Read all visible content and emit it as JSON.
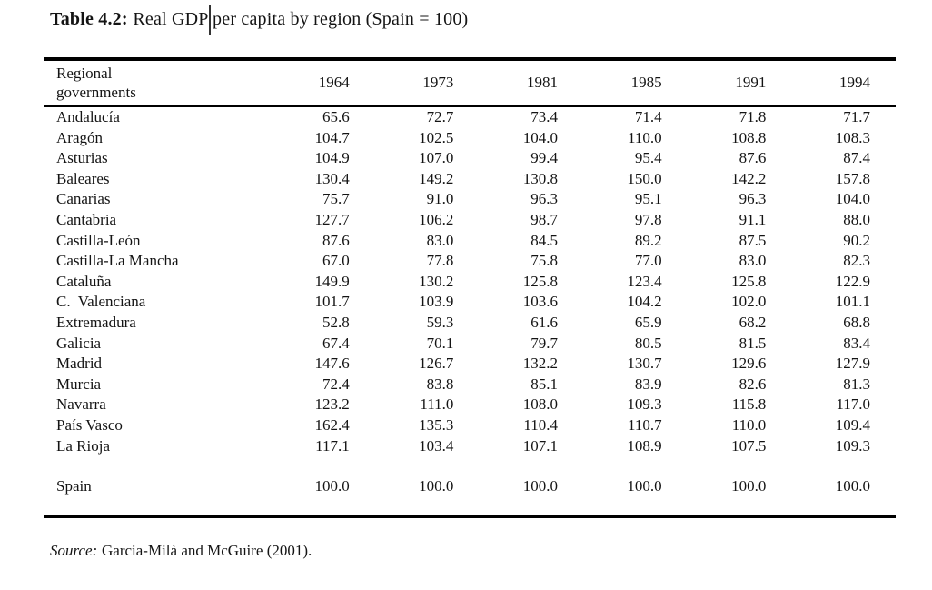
{
  "title": {
    "label": "Table 4.2:",
    "text": "Real GDP per capita by region (Spain = 100)"
  },
  "table": {
    "header": {
      "region_line1": "Regional",
      "region_line2": "governments",
      "years": [
        "1964",
        "1973",
        "1981",
        "1985",
        "1991",
        "1994"
      ]
    },
    "rows": [
      {
        "region": "Andalucía",
        "values": [
          "65.6",
          "72.7",
          "73.4",
          "71.4",
          "71.8",
          "71.7"
        ]
      },
      {
        "region": "Aragón",
        "values": [
          "104.7",
          "102.5",
          "104.0",
          "110.0",
          "108.8",
          "108.3"
        ]
      },
      {
        "region": "Asturias",
        "values": [
          "104.9",
          "107.0",
          "99.4",
          "95.4",
          "87.6",
          "87.4"
        ]
      },
      {
        "region": "Baleares",
        "values": [
          "130.4",
          "149.2",
          "130.8",
          "150.0",
          "142.2",
          "157.8"
        ]
      },
      {
        "region": "Canarias",
        "values": [
          "75.7",
          "91.0",
          "96.3",
          "95.1",
          "96.3",
          "104.0"
        ]
      },
      {
        "region": "Cantabria",
        "values": [
          "127.7",
          "106.2",
          "98.7",
          "97.8",
          "91.1",
          "88.0"
        ]
      },
      {
        "region": "Castilla-León",
        "values": [
          "87.6",
          "83.0",
          "84.5",
          "89.2",
          "87.5",
          "90.2"
        ]
      },
      {
        "region": "Castilla-La Mancha",
        "values": [
          "67.0",
          "77.8",
          "75.8",
          "77.0",
          "83.0",
          "82.3"
        ]
      },
      {
        "region": "Cataluña",
        "values": [
          "149.9",
          "130.2",
          "125.8",
          "123.4",
          "125.8",
          "122.9"
        ]
      },
      {
        "region": "C.  Valenciana",
        "values": [
          "101.7",
          "103.9",
          "103.6",
          "104.2",
          "102.0",
          "101.1"
        ]
      },
      {
        "region": "Extremadura",
        "values": [
          "52.8",
          "59.3",
          "61.6",
          "65.9",
          "68.2",
          "68.8"
        ]
      },
      {
        "region": "Galicia",
        "values": [
          "67.4",
          "70.1",
          "79.7",
          "80.5",
          "81.5",
          "83.4"
        ]
      },
      {
        "region": "Madrid",
        "values": [
          "147.6",
          "126.7",
          "132.2",
          "130.7",
          "129.6",
          "127.9"
        ]
      },
      {
        "region": "Murcia",
        "values": [
          "72.4",
          "83.8",
          "85.1",
          "83.9",
          "82.6",
          "81.3"
        ]
      },
      {
        "region": "Navarra",
        "values": [
          "123.2",
          "111.0",
          "108.0",
          "109.3",
          "115.8",
          "117.0"
        ]
      },
      {
        "region": "País Vasco",
        "values": [
          "162.4",
          "135.3",
          "110.4",
          "110.7",
          "110.0",
          "109.4"
        ]
      },
      {
        "region": "La Rioja",
        "values": [
          "117.1",
          "103.4",
          "107.1",
          "108.9",
          "107.5",
          "109.3"
        ]
      }
    ],
    "spain_row": {
      "region": "Spain",
      "values": [
        "100.0",
        "100.0",
        "100.0",
        "100.0",
        "100.0",
        "100.0"
      ]
    }
  },
  "source": {
    "label": "Source:",
    "text": "Garcia-Milà and McGuire (2001)."
  },
  "chart_data": {
    "type": "table",
    "title": "Table 4.2: Real GDP per capita by region (Spain = 100)",
    "columns": [
      "Regional governments",
      "1964",
      "1973",
      "1981",
      "1985",
      "1991",
      "1994"
    ],
    "rows": [
      [
        "Andalucía",
        65.6,
        72.7,
        73.4,
        71.4,
        71.8,
        71.7
      ],
      [
        "Aragón",
        104.7,
        102.5,
        104.0,
        110.0,
        108.8,
        108.3
      ],
      [
        "Asturias",
        104.9,
        107.0,
        99.4,
        95.4,
        87.6,
        87.4
      ],
      [
        "Baleares",
        130.4,
        149.2,
        130.8,
        150.0,
        142.2,
        157.8
      ],
      [
        "Canarias",
        75.7,
        91.0,
        96.3,
        95.1,
        96.3,
        104.0
      ],
      [
        "Cantabria",
        127.7,
        106.2,
        98.7,
        97.8,
        91.1,
        88.0
      ],
      [
        "Castilla-León",
        87.6,
        83.0,
        84.5,
        89.2,
        87.5,
        90.2
      ],
      [
        "Castilla-La Mancha",
        67.0,
        77.8,
        75.8,
        77.0,
        83.0,
        82.3
      ],
      [
        "Cataluña",
        149.9,
        130.2,
        125.8,
        123.4,
        125.8,
        122.9
      ],
      [
        "C. Valenciana",
        101.7,
        103.9,
        103.6,
        104.2,
        102.0,
        101.1
      ],
      [
        "Extremadura",
        52.8,
        59.3,
        61.6,
        65.9,
        68.2,
        68.8
      ],
      [
        "Galicia",
        67.4,
        70.1,
        79.7,
        80.5,
        81.5,
        83.4
      ],
      [
        "Madrid",
        147.6,
        126.7,
        132.2,
        130.7,
        129.6,
        127.9
      ],
      [
        "Murcia",
        72.4,
        83.8,
        85.1,
        83.9,
        82.6,
        81.3
      ],
      [
        "Navarra",
        123.2,
        111.0,
        108.0,
        109.3,
        115.8,
        117.0
      ],
      [
        "País Vasco",
        162.4,
        135.3,
        110.4,
        110.7,
        110.0,
        109.4
      ],
      [
        "La Rioja",
        117.1,
        103.4,
        107.1,
        108.9,
        107.5,
        109.3
      ],
      [
        "Spain",
        100.0,
        100.0,
        100.0,
        100.0,
        100.0,
        100.0
      ]
    ],
    "source": "Garcia-Milà and McGuire (2001)."
  }
}
